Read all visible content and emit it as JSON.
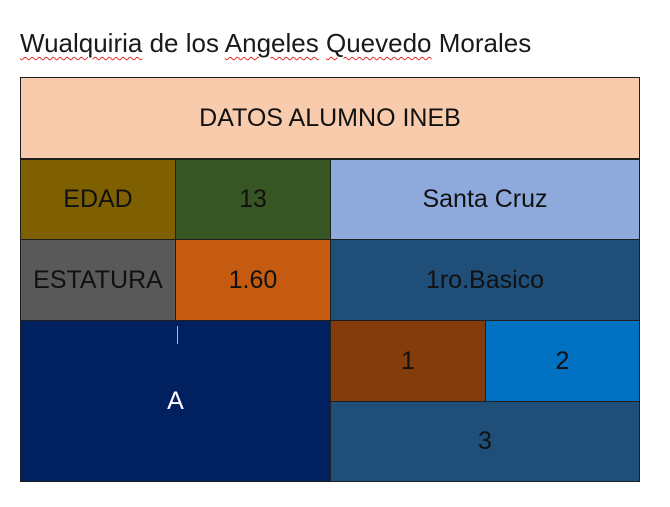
{
  "document": {
    "title_words": [
      "Wualquiria",
      "de los",
      "Angeles",
      "Quevedo",
      "Morales"
    ]
  },
  "table": {
    "header": "DATOS ALUMNO INEB",
    "edad_label": "EDAD",
    "edad_value": "13",
    "place": "Santa Cruz",
    "estatura_label": "ESTATURA",
    "estatura_value": "1.60",
    "grade": "1ro.Basico",
    "big_cell": "A",
    "cell_1": "1",
    "cell_2": "2",
    "cell_3": "3"
  },
  "colors": {
    "header_bg": "#F8CBAD",
    "edad_label_bg": "#7F6000",
    "edad_value_bg": "#375623",
    "place_bg": "#8EA9DB",
    "estatura_label_bg": "#595959",
    "estatura_value_bg": "#C55A11",
    "grade_bg": "#1F4E79",
    "big_cell_bg": "#002060",
    "cell_1_bg": "#843C0C",
    "cell_2_bg": "#0070C0",
    "cell_3_bg": "#1F4E79",
    "spellcheck_underline": "#E0302A"
  }
}
